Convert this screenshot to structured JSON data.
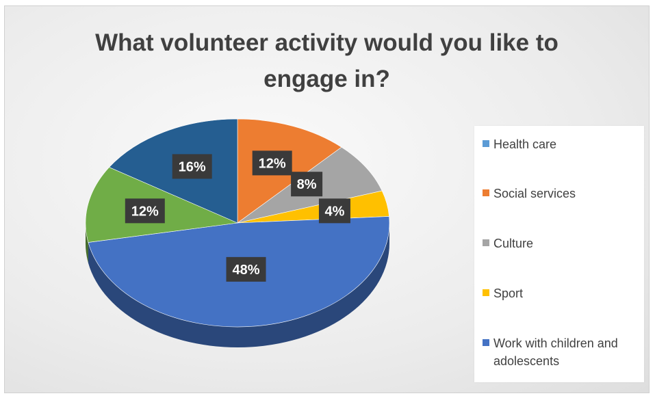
{
  "chart_data": {
    "type": "pie",
    "title": "What volunteer activity would you like to engage in?",
    "categories": [
      "Health care",
      "Social services",
      "Culture",
      "Sport",
      "Work with children and adolescents",
      "",
      ""
    ],
    "values": [
      0,
      12,
      8,
      4,
      48,
      12,
      16
    ],
    "data_labels": [
      "",
      "12%",
      "8%",
      "4%",
      "48%",
      "12%",
      "16%"
    ],
    "colors": [
      "#5b9bd5",
      "#ed7d31",
      "#a5a5a5",
      "#ffc000",
      "#4472c4",
      "#70ad47",
      "#255e91"
    ],
    "legend": {
      "placement": "right",
      "entries": [
        {
          "label": "Health care",
          "color": "#5b9bd5"
        },
        {
          "label": "Social services",
          "color": "#ed7d31"
        },
        {
          "label": "Culture",
          "color": "#a5a5a5"
        },
        {
          "label": "Sport",
          "color": "#ffc000"
        },
        {
          "label": "Work with children and adolescents",
          "color": "#4472c4"
        }
      ]
    },
    "style": "3d-pie"
  }
}
